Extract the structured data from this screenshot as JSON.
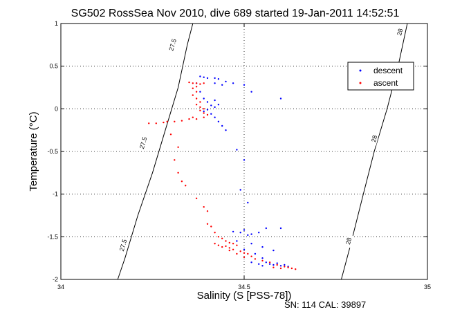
{
  "chart_data": {
    "type": "scatter",
    "title": "SG502 RossSea Nov 2010, dive 689 started 19-Jan-2011 14:52:51",
    "xlabel": "Salinity (S [PSS-78])",
    "ylabel": "Temperature (°C)",
    "xlim": [
      34,
      35
    ],
    "ylim": [
      -2,
      1
    ],
    "x_ticks": [
      "34",
      "34.5",
      "35"
    ],
    "y_ticks": [
      "1",
      "0.5",
      "0",
      "-0.5",
      "-1",
      "-1.5",
      "-2"
    ],
    "grid": true,
    "grid_style": "dotted",
    "legend_position": "top-right",
    "footer": "SN: 114  CAL: 39897",
    "density_contours": [
      {
        "label": "27.5",
        "points": [
          [
            34.155,
            -2.0
          ],
          [
            34.175,
            -1.75
          ],
          [
            34.21,
            -1.25
          ],
          [
            34.25,
            -0.75
          ],
          [
            34.285,
            -0.25
          ],
          [
            34.32,
            0.25
          ],
          [
            34.345,
            0.75
          ],
          [
            34.36,
            1.0
          ]
        ],
        "label_positions": [
          [
            34.17,
            -1.6
          ],
          [
            34.225,
            -0.4
          ],
          [
            34.305,
            0.75
          ]
        ]
      },
      {
        "label": "28",
        "points": [
          [
            34.765,
            -2.0
          ],
          [
            34.79,
            -1.6
          ],
          [
            34.825,
            -1.0
          ],
          [
            34.855,
            -0.5
          ],
          [
            34.89,
            0.0
          ],
          [
            34.92,
            0.5
          ],
          [
            34.945,
            1.0
          ]
        ],
        "label_positions": [
          [
            34.785,
            -1.55
          ],
          [
            34.855,
            -0.35
          ],
          [
            34.925,
            0.9
          ]
        ]
      }
    ],
    "series": [
      {
        "name": "descent",
        "color": "#0000ff",
        "points": [
          [
            34.38,
            0.38
          ],
          [
            34.39,
            0.37
          ],
          [
            34.4,
            0.36
          ],
          [
            34.42,
            0.36
          ],
          [
            34.43,
            0.35
          ],
          [
            34.45,
            0.32
          ],
          [
            34.47,
            0.3
          ],
          [
            34.5,
            0.28
          ],
          [
            34.42,
            0.3
          ],
          [
            34.44,
            0.28
          ],
          [
            34.52,
            0.2
          ],
          [
            34.6,
            0.12
          ],
          [
            34.37,
            0.3
          ],
          [
            34.38,
            0.2
          ],
          [
            34.39,
            0.12
          ],
          [
            34.4,
            0.08
          ],
          [
            34.41,
            0.04
          ],
          [
            34.42,
            0.02
          ],
          [
            34.4,
            -0.01
          ],
          [
            34.41,
            -0.06
          ],
          [
            34.39,
            -0.03
          ],
          [
            34.42,
            -0.1
          ],
          [
            34.43,
            -0.15
          ],
          [
            34.44,
            -0.2
          ],
          [
            34.45,
            -0.25
          ],
          [
            34.42,
            0.1
          ],
          [
            34.43,
            0.05
          ],
          [
            34.48,
            -0.48
          ],
          [
            34.5,
            -0.6
          ],
          [
            34.49,
            -0.95
          ],
          [
            34.51,
            -1.1
          ],
          [
            34.5,
            -1.42
          ],
          [
            34.49,
            -1.45
          ],
          [
            34.51,
            -1.48
          ],
          [
            34.52,
            -1.47
          ],
          [
            34.47,
            -1.44
          ],
          [
            34.54,
            -1.45
          ],
          [
            34.56,
            -1.4
          ],
          [
            34.6,
            -1.4
          ],
          [
            34.48,
            -1.55
          ],
          [
            34.52,
            -1.58
          ],
          [
            34.55,
            -1.62
          ],
          [
            34.58,
            -1.66
          ],
          [
            34.5,
            -1.65
          ],
          [
            34.53,
            -1.7
          ],
          [
            34.55,
            -1.75
          ],
          [
            34.56,
            -1.8
          ],
          [
            34.57,
            -1.82
          ],
          [
            34.58,
            -1.83
          ],
          [
            34.6,
            -1.84
          ],
          [
            34.62,
            -1.85
          ],
          [
            34.55,
            -1.84
          ],
          [
            34.59,
            -1.81
          ],
          [
            34.61,
            -1.83
          ],
          [
            34.52,
            -1.8
          ],
          [
            34.54,
            -1.82
          ]
        ]
      },
      {
        "name": "ascent",
        "color": "#ff0000",
        "points": [
          [
            34.35,
            0.31
          ],
          [
            34.36,
            0.3
          ],
          [
            34.37,
            0.3
          ],
          [
            34.38,
            0.29
          ],
          [
            34.39,
            0.3
          ],
          [
            34.37,
            0.26
          ],
          [
            34.36,
            0.24
          ],
          [
            34.37,
            0.2
          ],
          [
            34.36,
            0.16
          ],
          [
            34.37,
            0.12
          ],
          [
            34.38,
            0.08
          ],
          [
            34.37,
            0.05
          ],
          [
            34.38,
            0.02
          ],
          [
            34.39,
            0.0
          ],
          [
            34.38,
            -0.02
          ],
          [
            34.39,
            -0.05
          ],
          [
            34.4,
            -0.07
          ],
          [
            34.39,
            -0.1
          ],
          [
            34.37,
            -0.12
          ],
          [
            34.36,
            -0.1
          ],
          [
            34.35,
            -0.12
          ],
          [
            34.33,
            -0.14
          ],
          [
            34.31,
            -0.15
          ],
          [
            34.29,
            -0.15
          ],
          [
            34.28,
            -0.16
          ],
          [
            34.26,
            -0.17
          ],
          [
            34.24,
            -0.17
          ],
          [
            34.3,
            -0.3
          ],
          [
            34.32,
            -0.45
          ],
          [
            34.31,
            -0.6
          ],
          [
            34.32,
            -0.75
          ],
          [
            34.33,
            -0.85
          ],
          [
            34.34,
            -0.9
          ],
          [
            34.37,
            -1.05
          ],
          [
            34.39,
            -1.15
          ],
          [
            34.4,
            -1.2
          ],
          [
            34.4,
            -1.35
          ],
          [
            34.41,
            -1.38
          ],
          [
            34.42,
            -1.45
          ],
          [
            34.43,
            -1.5
          ],
          [
            34.44,
            -1.52
          ],
          [
            34.45,
            -1.55
          ],
          [
            34.46,
            -1.57
          ],
          [
            34.47,
            -1.58
          ],
          [
            34.45,
            -1.61
          ],
          [
            34.46,
            -1.63
          ],
          [
            34.48,
            -1.6
          ],
          [
            34.47,
            -1.65
          ],
          [
            34.49,
            -1.67
          ],
          [
            34.5,
            -1.69
          ],
          [
            34.51,
            -1.7
          ],
          [
            34.52,
            -1.73
          ],
          [
            34.53,
            -1.76
          ],
          [
            34.55,
            -1.78
          ],
          [
            34.57,
            -1.8
          ],
          [
            34.59,
            -1.83
          ],
          [
            34.61,
            -1.85
          ],
          [
            34.63,
            -1.87
          ],
          [
            34.64,
            -1.88
          ],
          [
            34.58,
            -1.86
          ],
          [
            34.6,
            -1.87
          ],
          [
            34.62,
            -1.86
          ],
          [
            34.44,
            -1.62
          ],
          [
            34.46,
            -1.66
          ],
          [
            34.48,
            -1.7
          ],
          [
            34.5,
            -1.74
          ],
          [
            34.42,
            -1.58
          ],
          [
            34.43,
            -1.6
          ]
        ]
      }
    ]
  }
}
